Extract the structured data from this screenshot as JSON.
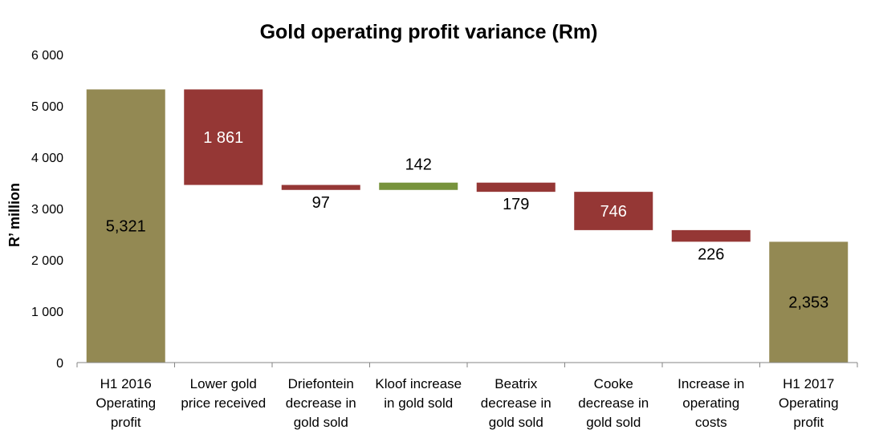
{
  "chart_data": {
    "type": "bar",
    "subtype": "waterfall",
    "title": "Gold operating profit variance (Rm)",
    "xlabel": "",
    "ylabel": "R’ million",
    "ylim": [
      0,
      6000
    ],
    "yticks": [
      0,
      1000,
      2000,
      3000,
      4000,
      5000,
      6000
    ],
    "ytick_labels": [
      "0",
      "1 000",
      "2 000",
      "3 000",
      "4 000",
      "5 000",
      "6 000"
    ],
    "grid": false,
    "legend": "none",
    "colors": {
      "total": "#938953",
      "decrease": "#953735",
      "increase": "#77933C"
    },
    "bars": [
      {
        "category": [
          "H1 2016",
          "Operating",
          "profit"
        ],
        "kind": "total",
        "base": 0,
        "top": 5321,
        "label": "5,321",
        "label_pos": "inside",
        "label_color": "#000000"
      },
      {
        "category": [
          "Lower gold",
          "price received"
        ],
        "kind": "decrease",
        "base": 3460,
        "top": 5321,
        "label": "1 861",
        "label_pos": "inside",
        "label_color": "#ffffff"
      },
      {
        "category": [
          "Driefontein",
          "decrease in",
          "gold sold"
        ],
        "kind": "decrease",
        "base": 3363,
        "top": 3460,
        "label": "97",
        "label_pos": "below",
        "label_color": "#000000"
      },
      {
        "category": [
          "Kloof increase",
          "in gold sold"
        ],
        "kind": "increase",
        "base": 3363,
        "top": 3505,
        "label": "142",
        "label_pos": "above",
        "label_color": "#000000"
      },
      {
        "category": [
          "Beatrix",
          "decrease in",
          "gold sold"
        ],
        "kind": "decrease",
        "base": 3326,
        "top": 3505,
        "label": "179",
        "label_pos": "below",
        "label_color": "#000000"
      },
      {
        "category": [
          "Cooke",
          "decrease in",
          "gold sold"
        ],
        "kind": "decrease",
        "base": 2580,
        "top": 3326,
        "label": "746",
        "label_pos": "inside",
        "label_color": "#ffffff"
      },
      {
        "category": [
          "Increase in",
          "operating",
          "costs"
        ],
        "kind": "decrease",
        "base": 2354,
        "top": 2580,
        "label": "226",
        "label_pos": "below",
        "label_color": "#000000"
      },
      {
        "category": [
          "H1 2017",
          "Operating",
          "profit"
        ],
        "kind": "total",
        "base": 0,
        "top": 2353,
        "label": "2,353",
        "label_pos": "inside",
        "label_color": "#000000"
      }
    ]
  }
}
